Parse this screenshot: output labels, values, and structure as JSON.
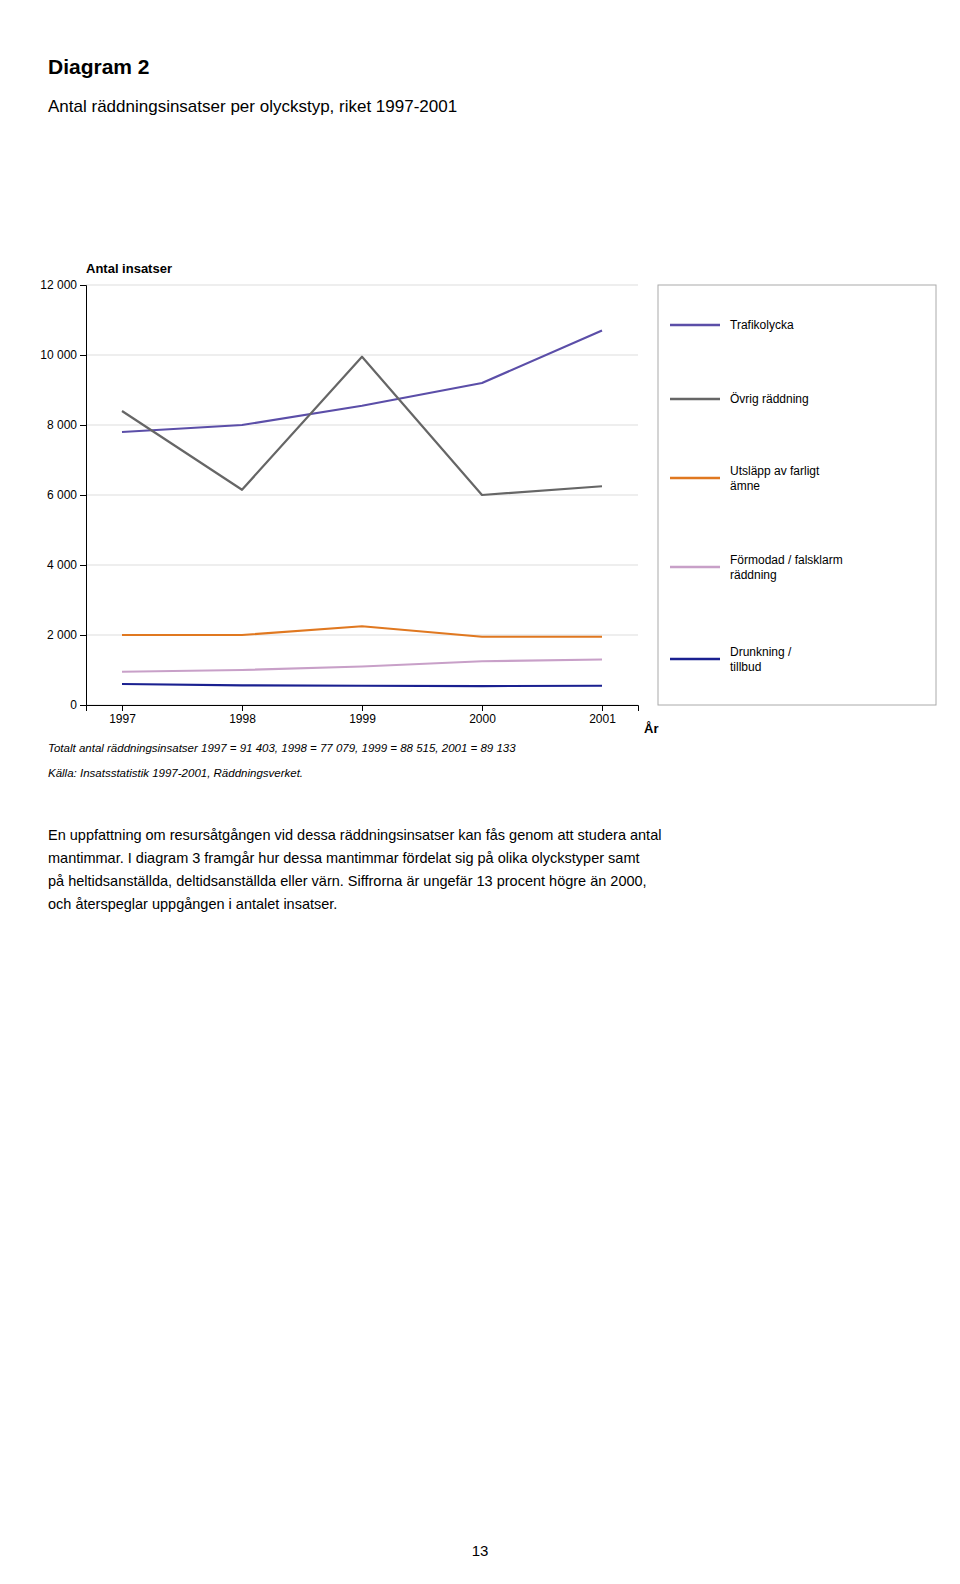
{
  "chart_data": {
    "type": "line",
    "title": "Diagram 2",
    "subtitle": "Antal räddningsinsatser per olyckstyp, riket 1997-2001",
    "y_label": "Antal insatser",
    "x_label": "År",
    "x": [
      1997,
      1998,
      1999,
      2000,
      2001
    ],
    "series": [
      {
        "name": "Trafikolycka",
        "color": "#5b4ea8",
        "values": [
          7800,
          8000,
          8550,
          9200,
          10700
        ]
      },
      {
        "name": "Övrig räddning",
        "color": "#666666",
        "values": [
          8400,
          6150,
          9950,
          6000,
          6250
        ]
      },
      {
        "name": "Utsläpp av farligt\nämne",
        "color": "#e07820",
        "values": [
          2000,
          2000,
          2250,
          1950,
          1950
        ]
      },
      {
        "name": "Förmodad / falsklarm\nräddning",
        "color": "#c8a0c8",
        "values": [
          950,
          1000,
          1100,
          1250,
          1300
        ]
      },
      {
        "name": "Drunkning /\ntillbud",
        "color": "#1a2090",
        "values": [
          600,
          560,
          550,
          540,
          550
        ]
      }
    ],
    "xlim": [
      1996.7,
      2001.3
    ],
    "xticks": [
      1997,
      1998,
      1999,
      2000,
      2001
    ],
    "ylim": [
      0,
      12000
    ],
    "yticks": [
      0,
      {
        "value": 2000,
        "label": "2 000"
      },
      {
        "value": 4000,
        "label": "4 000"
      },
      {
        "value": 6000,
        "label": "6 000"
      },
      {
        "value": 8000,
        "label": "8 000"
      },
      {
        "value": 10000,
        "label": "10 000"
      },
      {
        "value": 12000,
        "label": "12 000"
      }
    ],
    "grid": true,
    "legend": "right",
    "annotations": [
      "Totalt antal räddningsinsatser 1997 = 91 403, 1998 = 77 079, 1999 = 88 515, 2001 = 89 133",
      "Källa: Insatsstatistik 1997-2001, Räddningsverket."
    ]
  },
  "body_text": [
    "En uppfattning om resursåtgången vid dessa räddningsinsatser kan fås genom att studera antal",
    "mantimmar. I diagram 3 framgår hur dessa mantimmar fördelat sig på olika olyckstyper samt",
    "på heltidsanställda, deltidsanställda eller värn. Siffrorna är ungefär 13 procent högre än 2000,",
    "och återspeglar uppgången i antalet insatser."
  ],
  "page_number": "13"
}
